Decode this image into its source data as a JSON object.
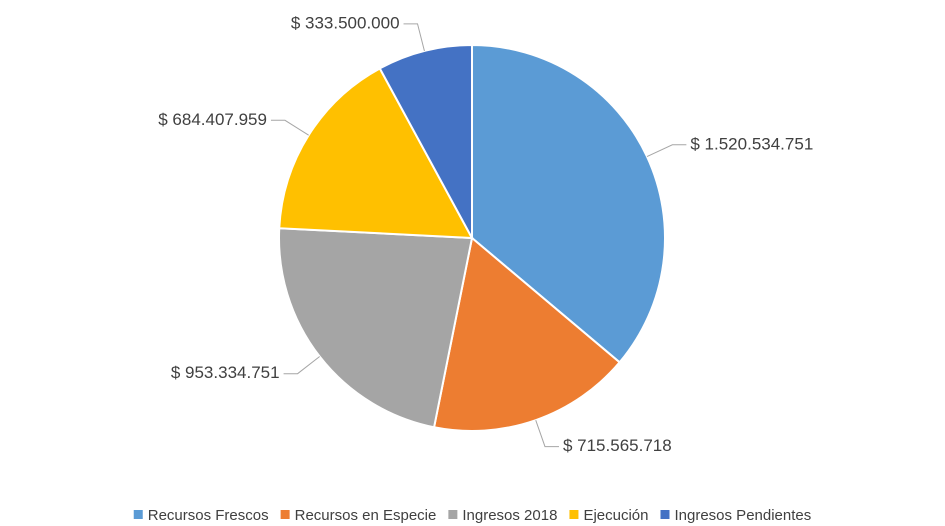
{
  "chart_data": {
    "type": "pie",
    "categories": [
      "Recursos Frescos",
      "Recursos en Especie",
      "Ingresos 2018",
      "Ejecución",
      "Ingresos Pendientes"
    ],
    "values": [
      1520534751,
      715565718,
      953334751,
      684407959,
      333500000
    ],
    "value_labels": [
      "$ 1.520.534.751",
      "$ 715.565.718",
      "$ 953.334.751",
      "$ 684.407.959",
      "$ 333.500.000"
    ],
    "colors": [
      "#5b9bd5",
      "#ed7d31",
      "#a5a5a5",
      "#ffc000",
      "#4472c4"
    ],
    "legend": "bottom"
  }
}
